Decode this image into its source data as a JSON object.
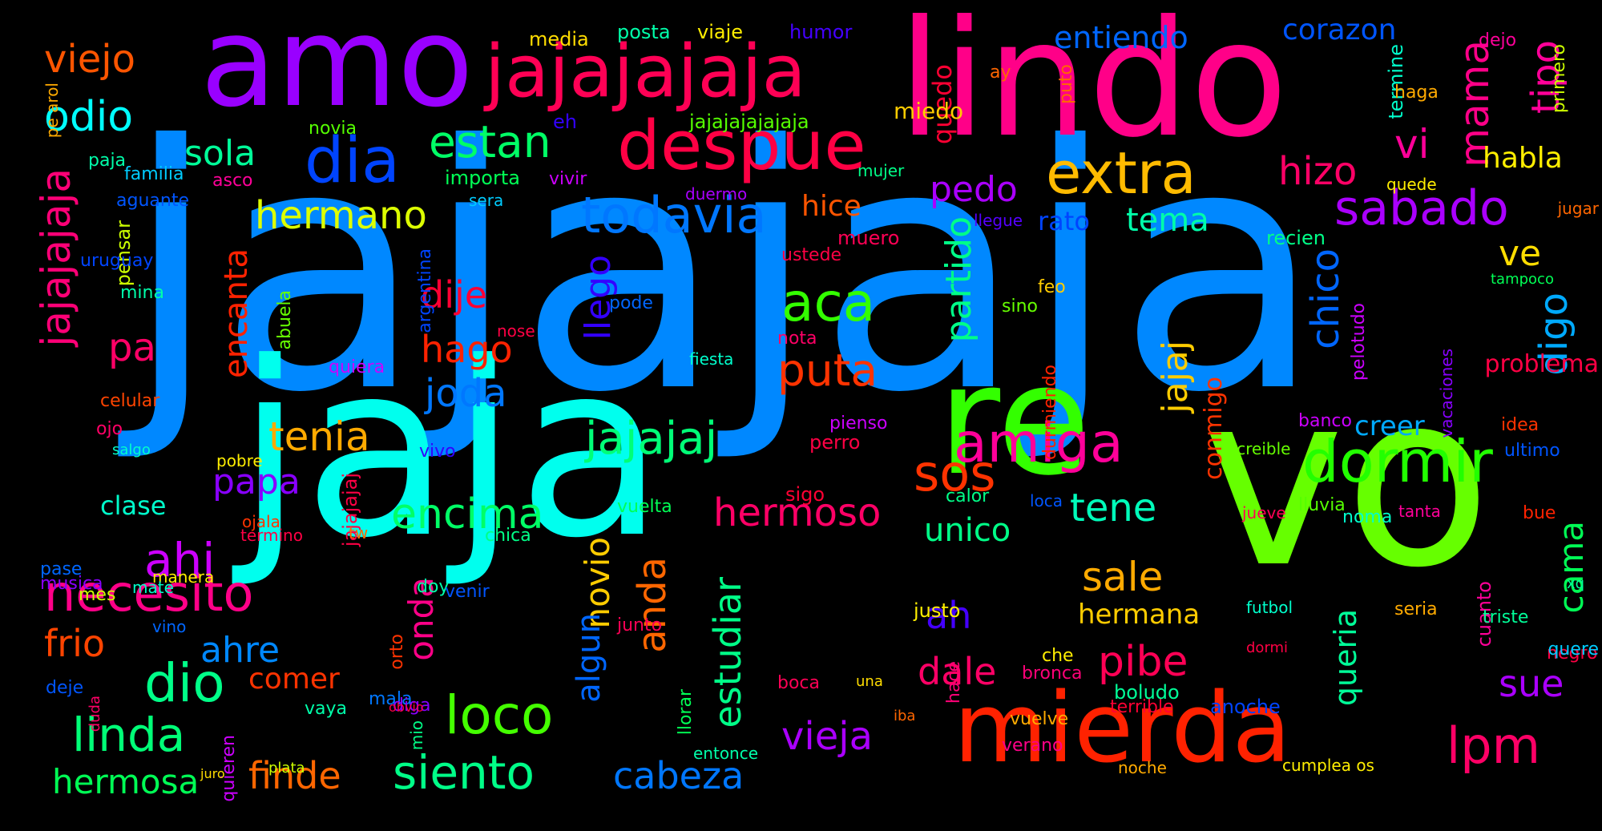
{
  "words": [
    {
      "text": "jajajaja",
      "color": "#0088ff"
    },
    {
      "text": "jaja",
      "color": "#00ffee"
    },
    {
      "text": "vo",
      "color": "#66ff00"
    },
    {
      "text": "lindo",
      "color": "#ff0088"
    },
    {
      "text": "amo",
      "color": "#9900ff"
    },
    {
      "text": "re",
      "color": "#33ff00"
    },
    {
      "text": "mierda",
      "color": "#ff2200"
    },
    {
      "text": "jajajajaja",
      "color": "#ff0055"
    },
    {
      "text": "despue",
      "color": "#ff0044"
    },
    {
      "text": "extra",
      "color": "#ffbb00"
    },
    {
      "text": "dia",
      "color": "#0044ff"
    },
    {
      "text": "todavia",
      "color": "#0077ff"
    },
    {
      "text": "dormir",
      "color": "#22ff00"
    },
    {
      "text": "amiga",
      "color": "#ff0099"
    },
    {
      "text": "jajajaj",
      "color": "#00ff77"
    },
    {
      "text": "sabado",
      "color": "#aa00ff"
    },
    {
      "text": "necesito",
      "color": "#ff0088"
    },
    {
      "text": "aca",
      "color": "#33ff00"
    },
    {
      "text": "sos",
      "color": "#ff3300"
    },
    {
      "text": "puta",
      "color": "#ff3300"
    },
    {
      "text": "estan",
      "color": "#00ff66"
    },
    {
      "text": "hermano",
      "color": "#ddff00"
    },
    {
      "text": "tenia",
      "color": "#ffaa00"
    },
    {
      "text": "odio",
      "color": "#00ffff"
    },
    {
      "text": "sola",
      "color": "#00ff99"
    },
    {
      "text": "viejo",
      "color": "#ff5500"
    },
    {
      "text": "jajajajaja",
      "color": "#ff0077",
      "vertical": true
    },
    {
      "text": "hizo",
      "color": "#ff0066"
    },
    {
      "text": "pedo",
      "color": "#aa00ff"
    },
    {
      "text": "tipo",
      "color": "#ff0099",
      "vertical": true
    },
    {
      "text": "mama",
      "color": "#ff0088",
      "vertical": true
    },
    {
      "text": "vi",
      "color": "#ff0099"
    },
    {
      "text": "habla",
      "color": "#ffee00"
    },
    {
      "text": "tema",
      "color": "#00ffaa"
    },
    {
      "text": "rato",
      "color": "#0044ff"
    },
    {
      "text": "ve",
      "color": "#ffdd00"
    },
    {
      "text": "digo",
      "color": "#00aaff",
      "vertical": true
    },
    {
      "text": "chico",
      "color": "#0066ff",
      "vertical": true
    },
    {
      "text": "jajaj",
      "color": "#ffcc00",
      "vertical": true
    },
    {
      "text": "partido",
      "color": "#00ff88",
      "vertical": true
    },
    {
      "text": "llego",
      "color": "#3300ff",
      "vertical": true
    },
    {
      "text": "dije",
      "color": "#ff0033"
    },
    {
      "text": "hago",
      "color": "#ff2200"
    },
    {
      "text": "joda",
      "color": "#0077ff"
    },
    {
      "text": "pa",
      "color": "#ff0066"
    },
    {
      "text": "encanta",
      "color": "#ff2200",
      "vertical": true
    },
    {
      "text": "papa",
      "color": "#8800ff"
    },
    {
      "text": "ahi",
      "color": "#cc00ff"
    },
    {
      "text": "clase",
      "color": "#00ffcc"
    },
    {
      "text": "encima",
      "color": "#00ff66"
    },
    {
      "text": "hermoso",
      "color": "#ff0066"
    },
    {
      "text": "unico",
      "color": "#00ff88"
    },
    {
      "text": "tene",
      "color": "#00ffbb"
    },
    {
      "text": "creer",
      "color": "#00aaff"
    },
    {
      "text": "conmigo",
      "color": "#ff3300",
      "vertical": true
    },
    {
      "text": "sale",
      "color": "#ffaa00"
    },
    {
      "text": "hermana",
      "color": "#ffcc00"
    },
    {
      "text": "ah",
      "color": "#4400ff"
    },
    {
      "text": "pibe",
      "color": "#ff0055"
    },
    {
      "text": "dale",
      "color": "#ff0066"
    },
    {
      "text": "queria",
      "color": "#00ff99",
      "vertical": true
    },
    {
      "text": "cama",
      "color": "#00ff55",
      "vertical": true
    },
    {
      "text": "sue",
      "color": "#aa00ff"
    },
    {
      "text": "lpm",
      "color": "#ff0066"
    },
    {
      "text": "novio",
      "color": "#ffcc00",
      "vertical": true
    },
    {
      "text": "anda",
      "color": "#ff6600",
      "vertical": true
    },
    {
      "text": "onda",
      "color": "#ff0088",
      "vertical": true
    },
    {
      "text": "estudiar",
      "color": "#00ff88",
      "vertical": true
    },
    {
      "text": "algun",
      "color": "#0066ff",
      "vertical": true
    },
    {
      "text": "frio",
      "color": "#ff4400"
    },
    {
      "text": "ahre",
      "color": "#0088ff"
    },
    {
      "text": "dio",
      "color": "#00ff88"
    },
    {
      "text": "comer",
      "color": "#ff3300"
    },
    {
      "text": "linda",
      "color": "#00ff77"
    },
    {
      "text": "hermosa",
      "color": "#00ff55"
    },
    {
      "text": "finde",
      "color": "#ff6600"
    },
    {
      "text": "siento",
      "color": "#00ff88"
    },
    {
      "text": "loco",
      "color": "#44ff00"
    },
    {
      "text": "cabeza",
      "color": "#0077ff"
    },
    {
      "text": "vieja",
      "color": "#aa00ff"
    },
    {
      "text": "entiendo",
      "color": "#0066ff"
    },
    {
      "text": "corazon",
      "color": "#0055ff"
    },
    {
      "text": "quedo",
      "color": "#ff0033",
      "vertical": true
    },
    {
      "text": "hice",
      "color": "#ff5500"
    },
    {
      "text": "media",
      "color": "#ffdd00"
    },
    {
      "text": "posta",
      "color": "#00ffaa"
    },
    {
      "text": "viaje",
      "color": "#ffee00"
    },
    {
      "text": "humor",
      "color": "#4400ff"
    },
    {
      "text": "jajajajajajaja",
      "color": "#55ff00"
    },
    {
      "text": "eh",
      "color": "#3300ff"
    },
    {
      "text": "miedo",
      "color": "#ffcc00"
    },
    {
      "text": "ay",
      "color": "#ff6600"
    },
    {
      "text": "puto",
      "color": "#ff6600",
      "vertical": true
    },
    {
      "text": "termine",
      "color": "#00ffcc",
      "vertical": true
    },
    {
      "text": "haga",
      "color": "#ffaa00"
    },
    {
      "text": "dejo",
      "color": "#ff0099"
    },
    {
      "text": "primero",
      "color": "#ccff00",
      "vertical": true
    },
    {
      "text": "pe arol",
      "color": "#ffaa00",
      "vertical": true
    },
    {
      "text": "novia",
      "color": "#55ff00"
    },
    {
      "text": "familia",
      "color": "#00ccff"
    },
    {
      "text": "asco",
      "color": "#ff0099"
    },
    {
      "text": "aguante",
      "color": "#0055ff"
    },
    {
      "text": "paja",
      "color": "#00ffaa"
    },
    {
      "text": "pensar",
      "color": "#ccff00",
      "vertical": true
    },
    {
      "text": "importa",
      "color": "#00ff55"
    },
    {
      "text": "sera",
      "color": "#00ccff"
    },
    {
      "text": "vivir",
      "color": "#cc00ff"
    },
    {
      "text": "duermo",
      "color": "#aa00ff"
    },
    {
      "text": "mujer",
      "color": "#00ff88"
    },
    {
      "text": "llegue",
      "color": "#5500ff"
    },
    {
      "text": "muero",
      "color": "#ff0055"
    },
    {
      "text": "ustede",
      "color": "#ff0044"
    },
    {
      "text": "recien",
      "color": "#00ff88"
    },
    {
      "text": "quede",
      "color": "#ffee00"
    },
    {
      "text": "jugar",
      "color": "#ff6600"
    },
    {
      "text": "tampoco",
      "color": "#00ff55"
    },
    {
      "text": "argentina",
      "color": "#0044ff",
      "vertical": true
    },
    {
      "text": "uruguay",
      "color": "#0044ff"
    },
    {
      "text": "mina",
      "color": "#00ffaa"
    },
    {
      "text": "abuela",
      "color": "#66ff00",
      "vertical": true
    },
    {
      "text": "pode",
      "color": "#0066ff"
    },
    {
      "text": "nose",
      "color": "#ff0044"
    },
    {
      "text": "quiera",
      "color": "#cc00ff"
    },
    {
      "text": "fiesta",
      "color": "#00ffcc"
    },
    {
      "text": "feo",
      "color": "#ffcc00"
    },
    {
      "text": "sino",
      "color": "#66ff00"
    },
    {
      "text": "nota",
      "color": "#ff0066"
    },
    {
      "text": "durmiendo",
      "color": "#ff2200",
      "vertical": true
    },
    {
      "text": "pelotudo",
      "color": "#cc00ff",
      "vertical": true
    },
    {
      "text": "vacaciones",
      "color": "#8800ff",
      "vertical": true
    },
    {
      "text": "problema",
      "color": "#ff0044"
    },
    {
      "text": "celular",
      "color": "#ff4400"
    },
    {
      "text": "ojo",
      "color": "#ff0066"
    },
    {
      "text": "salgo",
      "color": "#00ffcc"
    },
    {
      "text": "pobre",
      "color": "#ffee00"
    },
    {
      "text": "vivo",
      "color": "#3300ff"
    },
    {
      "text": "jajajajaj",
      "color": "#ff0044",
      "vertical": true
    },
    {
      "text": "perro",
      "color": "#ff0044"
    },
    {
      "text": "pienso",
      "color": "#cc00ff"
    },
    {
      "text": "banco",
      "color": "#cc00ff"
    },
    {
      "text": "idea",
      "color": "#ff3300"
    },
    {
      "text": "ultimo",
      "color": "#0055ff"
    },
    {
      "text": "increible",
      "color": "#66ff00"
    },
    {
      "text": "lluvia",
      "color": "#55ff00"
    },
    {
      "text": "ojala",
      "color": "#ff3300"
    },
    {
      "text": "sigo",
      "color": "#ff0033"
    },
    {
      "text": "calor",
      "color": "#00ff88"
    },
    {
      "text": "vuelta",
      "color": "#00ff55"
    },
    {
      "text": "tw",
      "color": "#ff6600"
    },
    {
      "text": "loca",
      "color": "#0055ff"
    },
    {
      "text": "bue",
      "color": "#ff2200"
    },
    {
      "text": "noma",
      "color": "#00ffcc"
    },
    {
      "text": "pase",
      "color": "#0066ff"
    },
    {
      "text": "termino",
      "color": "#ff0044"
    },
    {
      "text": "chica",
      "color": "#00ff88"
    },
    {
      "text": "tanta",
      "color": "#ff0099"
    },
    {
      "text": "manera",
      "color": "#ffee00"
    },
    {
      "text": "jueve",
      "color": "#ff0055"
    },
    {
      "text": "xq",
      "color": "#00ff99"
    },
    {
      "text": "musica",
      "color": "#8800ff"
    },
    {
      "text": "mes",
      "color": "#ccff00"
    },
    {
      "text": "mate",
      "color": "#00ffcc"
    },
    {
      "text": "doy",
      "color": "#00ffaa"
    },
    {
      "text": "cuanto",
      "color": "#ff0099",
      "vertical": true
    },
    {
      "text": "triste",
      "color": "#00ff99"
    },
    {
      "text": "vino",
      "color": "#0066ff"
    },
    {
      "text": "futbol",
      "color": "#00ffcc"
    },
    {
      "text": "seria",
      "color": "#ffaa00"
    },
    {
      "text": "junto",
      "color": "#ff0055"
    },
    {
      "text": "negro",
      "color": "#ff0044"
    },
    {
      "text": "deje",
      "color": "#0055ff"
    },
    {
      "text": "duda",
      "color": "#ff0066",
      "vertical": true
    },
    {
      "text": "venir",
      "color": "#0055ff"
    },
    {
      "text": "justo",
      "color": "#ffee00"
    },
    {
      "text": "orto",
      "color": "#ff3300",
      "vertical": true
    },
    {
      "text": "mala",
      "color": "#0077ff"
    },
    {
      "text": "quere",
      "color": "#00ccff"
    },
    {
      "text": "dormi",
      "color": "#ff0044"
    },
    {
      "text": "che",
      "color": "#ffee00"
    },
    {
      "text": "boca",
      "color": "#ff0055"
    },
    {
      "text": "diga",
      "color": "#8800ff"
    },
    {
      "text": "vaya",
      "color": "#00ffaa"
    },
    {
      "text": "mio",
      "color": "#00ff88",
      "vertical": true
    },
    {
      "text": "llorar",
      "color": "#00ff55",
      "vertical": true
    },
    {
      "text": "vuelve",
      "color": "#ffaa00"
    },
    {
      "text": "bronca",
      "color": "#ff0077"
    },
    {
      "text": "quieren",
      "color": "#cc00ff",
      "vertical": true
    },
    {
      "text": "juro",
      "color": "#ffdd00"
    },
    {
      "text": "obvio",
      "color": "#ff0044"
    },
    {
      "text": "plata",
      "color": "#ccff00"
    },
    {
      "text": "una",
      "color": "#ffdd00"
    },
    {
      "text": "iba",
      "color": "#ff6600"
    },
    {
      "text": "hace",
      "color": "#ff0077",
      "vertical": true
    },
    {
      "text": "cumplea os",
      "color": "#ffee00"
    },
    {
      "text": "entonce",
      "color": "#00ffaa"
    },
    {
      "text": "terrible",
      "color": "#ff0033"
    },
    {
      "text": "verano",
      "color": "#ff0088"
    },
    {
      "text": "noche",
      "color": "#ffaa00"
    },
    {
      "text": "boludo",
      "color": "#00ff99"
    },
    {
      "text": "anoche",
      "color": "#0044ff"
    }
  ]
}
